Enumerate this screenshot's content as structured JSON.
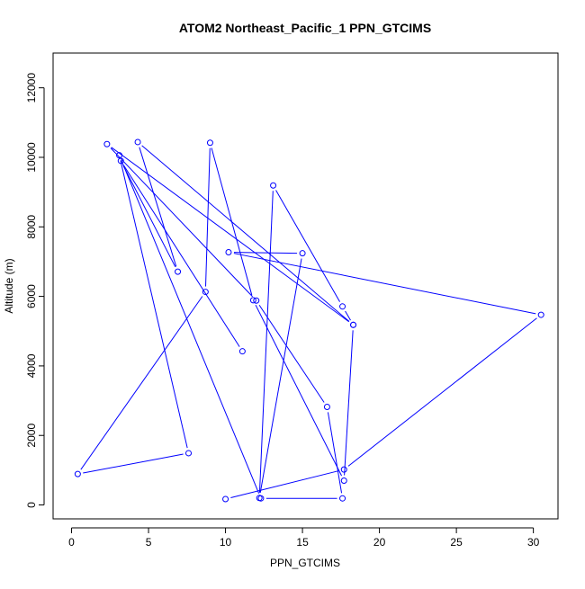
{
  "chart_data": {
    "type": "line",
    "title": "ATOM2 Northeast_Pacific_1 PPN_GTCIMS",
    "xlabel": "PPN_GTCIMS",
    "ylabel": "Altitude (m)",
    "xlim": [
      -1.2,
      31.6
    ],
    "ylim": [
      -400,
      13000
    ],
    "xticks": [
      0,
      5,
      10,
      15,
      20,
      25,
      30
    ],
    "yticks": [
      0,
      2000,
      4000,
      6000,
      8000,
      10000,
      12000
    ],
    "grid": false,
    "line_color": "#0000ff",
    "series": [
      {
        "x": [
          10.0,
          17.7,
          30.5,
          10.2,
          15.0,
          12.2,
          13.1,
          17.6,
          18.3,
          17.7,
          11.8,
          9.0,
          8.7,
          0.4,
          7.6,
          3.1,
          12.3,
          17.6,
          16.6,
          12.0,
          2.3,
          18.3,
          4.3,
          6.9,
          3.2,
          11.1
        ],
        "y": [
          170,
          1020,
          5470,
          7270,
          7240,
          200,
          9190,
          5710,
          5180,
          700,
          5890,
          10420,
          6130,
          890,
          1490,
          10060,
          190,
          190,
          2820,
          5880,
          10380,
          5180,
          10440,
          6710,
          9900,
          4420
        ]
      }
    ]
  }
}
